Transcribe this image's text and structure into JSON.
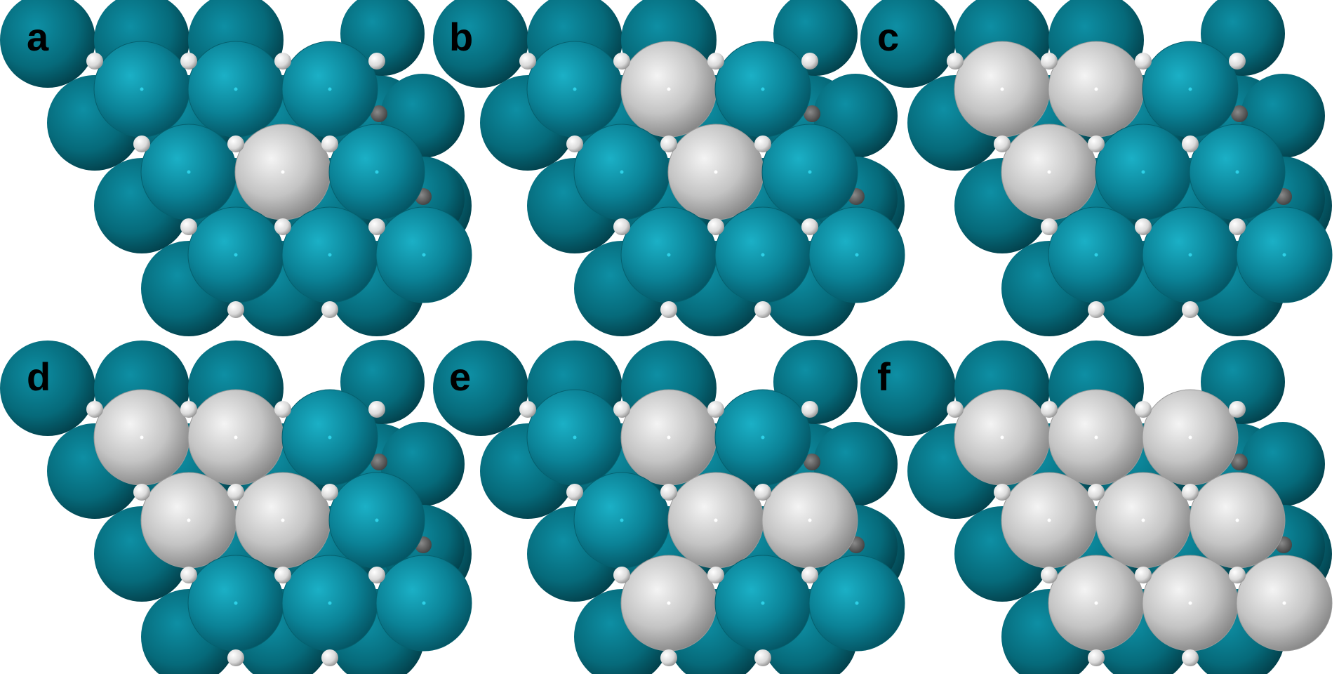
{
  "figure": {
    "colors": {
      "substrate": "#0b8296",
      "adsorbate": "#c4c4c4",
      "hydrogen": "#e6e6e6",
      "background": "#ffffff"
    },
    "panels": [
      {
        "label": "a",
        "adsorbate_sites": [
          "r2c2"
        ]
      },
      {
        "label": "b",
        "adsorbate_sites": [
          "r1c2",
          "r2c2"
        ]
      },
      {
        "label": "c",
        "adsorbate_sites": [
          "r1c1",
          "r1c2",
          "r2c1"
        ]
      },
      {
        "label": "d",
        "adsorbate_sites": [
          "r1c1",
          "r1c2",
          "r2c1",
          "r2c2"
        ]
      },
      {
        "label": "e",
        "adsorbate_sites": [
          "r1c2",
          "r2c2",
          "r2c3",
          "r3c1"
        ]
      },
      {
        "label": "f",
        "adsorbate_sites": [
          "r1c1",
          "r1c2",
          "r1c3",
          "r2c1",
          "r2c2",
          "r2c3",
          "r3c1",
          "r3c2",
          "r3c3"
        ]
      }
    ]
  }
}
